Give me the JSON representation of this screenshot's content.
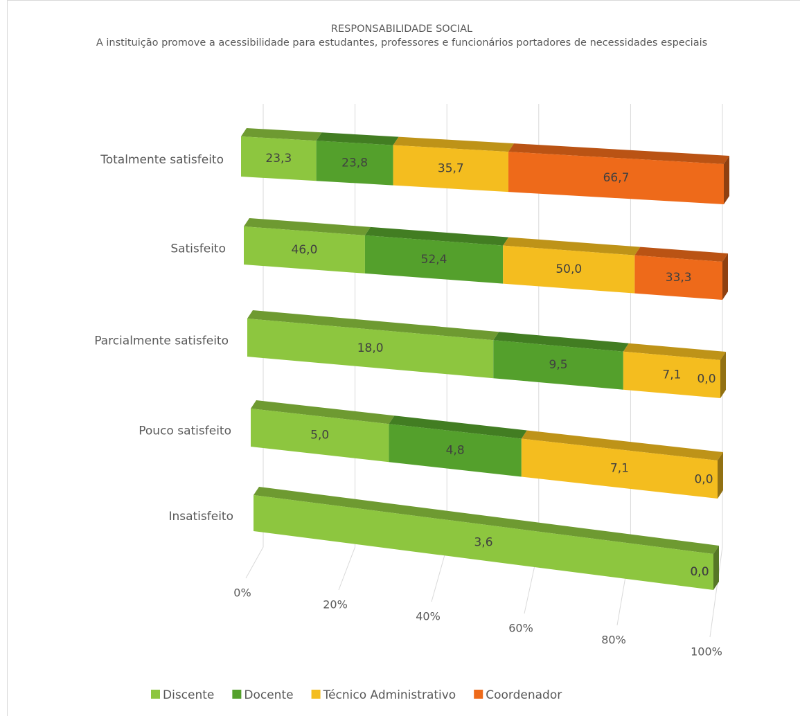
{
  "chart_data": {
    "type": "bar3d",
    "orientation": "horizontal",
    "stack": "percent",
    "title": "RESPONSABILIDADE SOCIAL",
    "subtitle": "A instituição promove a acessibilidade para estudantes, professores e funcionários portadores de necessidades especiais",
    "categories": [
      "Totalmente satisfeito",
      "Satisfeito",
      "Parcialmente satisfeito",
      "Pouco satisfeito",
      "Insatisfeito"
    ],
    "series": [
      {
        "name": "Discente",
        "color": "#8dc63f",
        "values": [
          23.3,
          46.0,
          18.0,
          5.0,
          3.6
        ],
        "value_labels": [
          "23,3",
          "46,0",
          "18,0",
          "5,0",
          "3,6"
        ]
      },
      {
        "name": "Docente",
        "color": "#54a02c",
        "values": [
          23.8,
          52.4,
          9.5,
          4.8,
          0.0
        ],
        "value_labels": [
          "23,8",
          "52,4",
          "9,5",
          "4,8",
          "0,0"
        ]
      },
      {
        "name": "Técnico Administrativo",
        "color": "#f4bd1f",
        "values": [
          35.7,
          50.0,
          7.1,
          7.1,
          0.0
        ],
        "value_labels": [
          "35,7",
          "50,0",
          "7,1",
          "7,1",
          "0,0"
        ]
      },
      {
        "name": "Coordenador",
        "color": "#ee6a1a",
        "values": [
          66.7,
          33.3,
          0.0,
          0.0,
          0.0
        ],
        "value_labels": [
          "66,7",
          "33,3",
          "0,0",
          "0,0",
          "0,0"
        ]
      }
    ],
    "xlim": [
      0,
      100
    ],
    "xticks": [
      {
        "value": 0,
        "label": "0%"
      },
      {
        "value": 20,
        "label": "20%"
      },
      {
        "value": 40,
        "label": "40%"
      },
      {
        "value": 60,
        "label": "60%"
      },
      {
        "value": 80,
        "label": "80%"
      },
      {
        "value": 100,
        "label": "100%"
      }
    ],
    "grid": true,
    "legend": "bottom"
  }
}
